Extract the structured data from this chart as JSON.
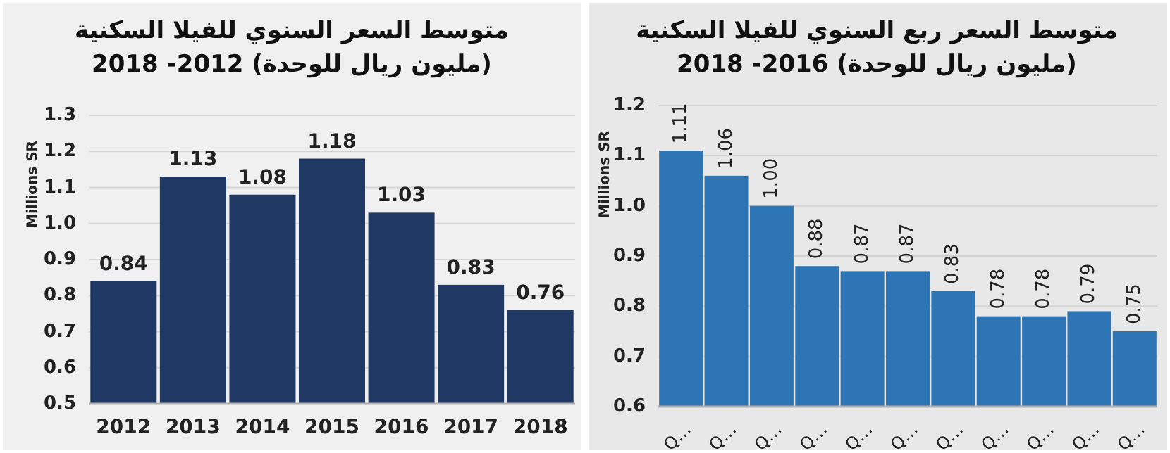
{
  "chart_data": [
    {
      "type": "bar",
      "title": "متوسط السعر السنوي للفيلا السكنية",
      "subtitle": "(مليون ريال للوحدة) 2012- 2018",
      "ylabel": "Millions SR",
      "categories": [
        "2012",
        "2013",
        "2014",
        "2015",
        "2016",
        "2017",
        "2018"
      ],
      "values": [
        0.84,
        1.13,
        1.08,
        1.18,
        1.03,
        0.83,
        0.76
      ],
      "color": "#203864",
      "value_labels": [
        "0.84",
        "1.13",
        "1.08",
        "1.18",
        "1.03",
        "0.83",
        "0.76"
      ],
      "ylim": [
        0.5,
        1.3
      ],
      "yticks": [
        0.5,
        0.6,
        0.7,
        0.8,
        0.9,
        {
          "value": 1.0,
          "label": "1.0"
        },
        1.1,
        1.2,
        1.3
      ],
      "grid": "y"
    },
    {
      "type": "bar",
      "title": "متوسط السعر ربع السنوي للفيلا السكنية",
      "subtitle": "(مليون ريال للوحدة) 2016- 2018",
      "ylabel": "Millions SR",
      "categories": [
        "Q…",
        "Q…",
        "Q…",
        "Q…",
        "Q…",
        "Q…",
        "Q…",
        "Q…",
        "Q…",
        "Q…",
        "Q…"
      ],
      "values": [
        1.11,
        1.06,
        1.0,
        0.88,
        0.87,
        0.87,
        0.83,
        0.78,
        0.78,
        0.79,
        0.75
      ],
      "color": "#2e75b6",
      "value_labels": [
        "1.11",
        "1.06",
        "1.00",
        "0.88",
        "0.87",
        "0.87",
        "0.83",
        "0.78",
        "0.78",
        "0.79",
        "0.75"
      ],
      "ylim": [
        0.6,
        1.2
      ],
      "yticks": [
        0.6,
        0.7,
        0.8,
        0.9,
        {
          "value": 1.0,
          "label": "1.0"
        },
        1.1,
        1.2
      ],
      "grid": "y"
    }
  ]
}
